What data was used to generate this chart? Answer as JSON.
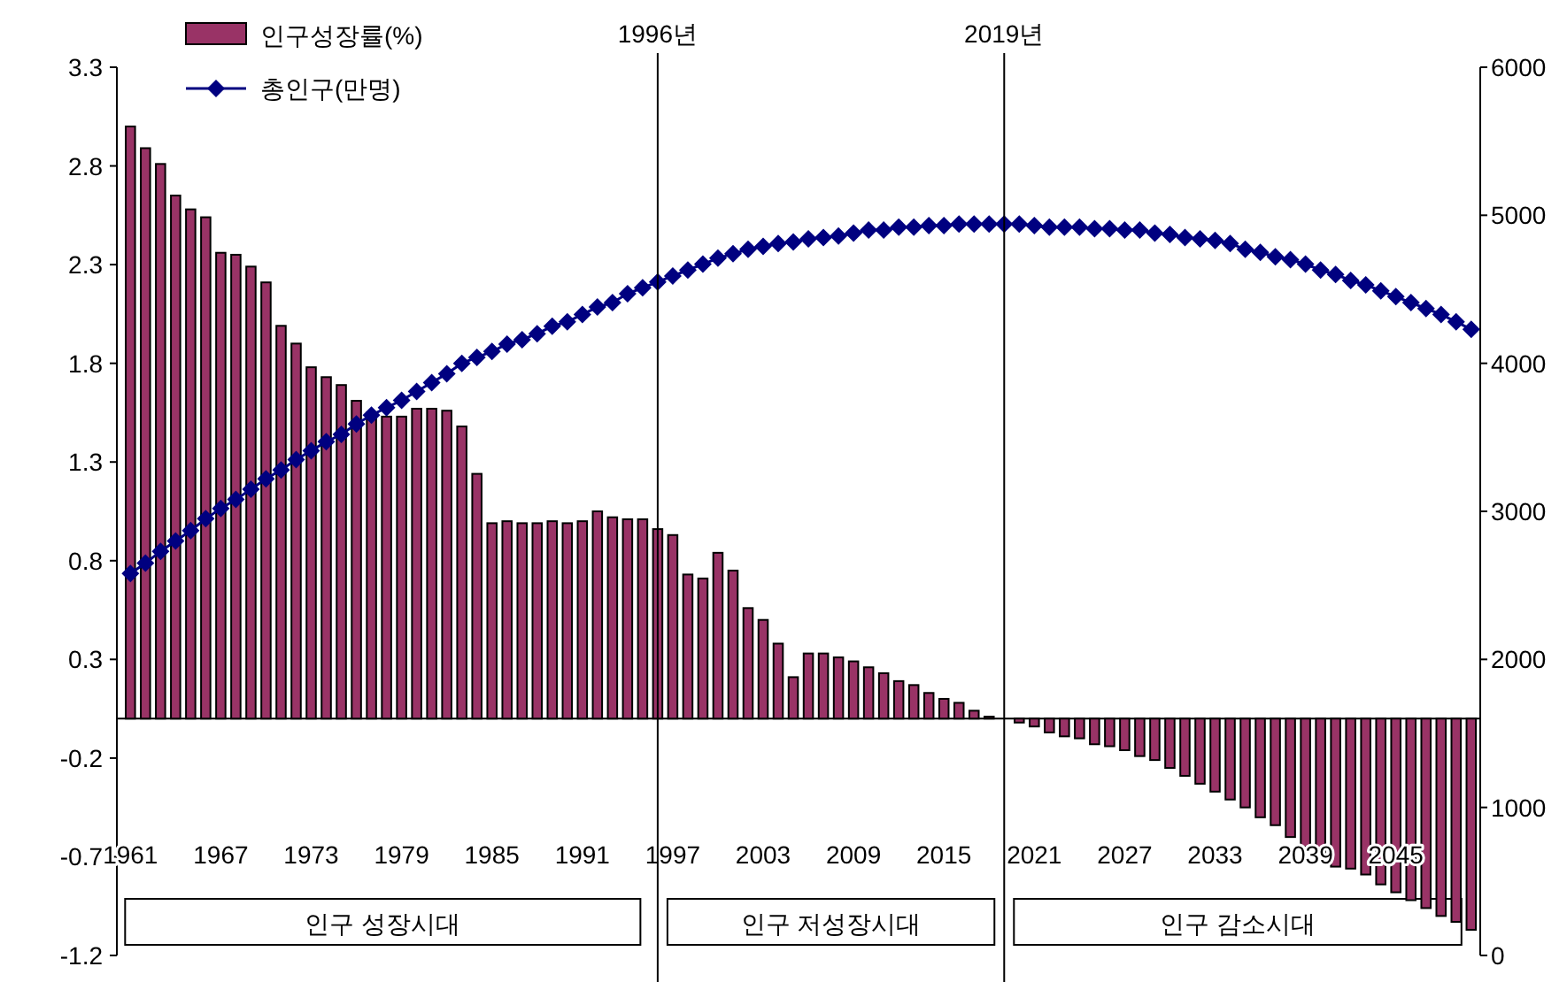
{
  "chart_data": {
    "type": "bar",
    "x": [
      1961,
      1962,
      1963,
      1964,
      1965,
      1966,
      1967,
      1968,
      1969,
      1970,
      1971,
      1972,
      1973,
      1974,
      1975,
      1976,
      1977,
      1978,
      1979,
      1980,
      1981,
      1982,
      1983,
      1984,
      1985,
      1986,
      1987,
      1988,
      1989,
      1990,
      1991,
      1992,
      1993,
      1994,
      1995,
      1996,
      1997,
      1998,
      1999,
      2000,
      2001,
      2002,
      2003,
      2004,
      2005,
      2006,
      2007,
      2008,
      2009,
      2010,
      2011,
      2012,
      2013,
      2014,
      2015,
      2016,
      2017,
      2018,
      2019,
      2020,
      2021,
      2022,
      2023,
      2024,
      2025,
      2026,
      2027,
      2028,
      2029,
      2030,
      2031,
      2032,
      2033,
      2034,
      2035,
      2036,
      2037,
      2038,
      2039,
      2040,
      2041,
      2042,
      2043,
      2044,
      2045,
      2046,
      2047,
      2048,
      2049,
      2050
    ],
    "series": [
      {
        "name": "인구성장률(%)",
        "color": "#993366",
        "values": [
          3.0,
          2.89,
          2.81,
          2.65,
          2.58,
          2.54,
          2.36,
          2.35,
          2.29,
          2.21,
          1.99,
          1.9,
          1.78,
          1.73,
          1.69,
          1.61,
          1.55,
          1.53,
          1.53,
          1.57,
          1.57,
          1.56,
          1.48,
          1.24,
          0.99,
          1.0,
          0.99,
          0.99,
          1.0,
          0.99,
          1.0,
          1.05,
          1.02,
          1.01,
          1.01,
          0.96,
          0.93,
          0.73,
          0.71,
          0.84,
          0.75,
          0.56,
          0.5,
          0.38,
          0.21,
          0.33,
          0.33,
          0.31,
          0.29,
          0.26,
          0.23,
          0.19,
          0.17,
          0.13,
          0.1,
          0.08,
          0.04,
          0.01,
          0.0,
          -0.02,
          -0.04,
          -0.07,
          -0.09,
          -0.1,
          -0.13,
          -0.14,
          -0.16,
          -0.19,
          -0.21,
          -0.25,
          -0.29,
          -0.33,
          -0.37,
          -0.41,
          -0.45,
          -0.5,
          -0.54,
          -0.6,
          -0.65,
          -0.72,
          -0.75,
          -0.76,
          -0.79,
          -0.84,
          -0.88,
          -0.92,
          -0.96,
          -1.0,
          -1.03,
          -1.07
        ]
      },
      {
        "name": "총인구(만명)",
        "type": "line",
        "axis": "y2",
        "color": "#000080",
        "marker": "diamond",
        "values": [
          2580,
          2650,
          2730,
          2800,
          2870,
          2950,
          3020,
          3080,
          3150,
          3220,
          3280,
          3350,
          3410,
          3470,
          3520,
          3590,
          3650,
          3700,
          3750,
          3810,
          3870,
          3930,
          4000,
          4040,
          4080,
          4130,
          4160,
          4200,
          4250,
          4280,
          4330,
          4380,
          4410,
          4470,
          4510,
          4550,
          4590,
          4630,
          4670,
          4710,
          4740,
          4770,
          4790,
          4810,
          4820,
          4840,
          4850,
          4860,
          4880,
          4900,
          4900,
          4920,
          4920,
          4930,
          4930,
          4940,
          4940,
          4940,
          4940,
          4940,
          4930,
          4920,
          4920,
          4920,
          4910,
          4910,
          4900,
          4900,
          4880,
          4870,
          4850,
          4840,
          4830,
          4810,
          4770,
          4750,
          4720,
          4700,
          4670,
          4630,
          4600,
          4560,
          4530,
          4490,
          4450,
          4410,
          4370,
          4330,
          4280,
          4230
        ]
      }
    ],
    "xlim": [
      1960.1,
      2050.6
    ],
    "xticks": [
      1961,
      1967,
      1973,
      1979,
      1985,
      1991,
      1997,
      2003,
      2009,
      2015,
      2021,
      2027,
      2033,
      2039,
      2045
    ],
    "ylim": [
      -1.2,
      3.3
    ],
    "yticks": [
      -1.2,
      -0.7,
      -0.2,
      0.3,
      0.8,
      1.3,
      1.8,
      2.3,
      2.8,
      3.3
    ],
    "y2lim": [
      0,
      6000
    ],
    "y2ticks": [
      0,
      1000,
      2000,
      3000,
      4000,
      5000,
      6000
    ],
    "ref_lines": [
      {
        "axis": "x",
        "value": 1996,
        "label": "1996년",
        "color": "#000000"
      },
      {
        "axis": "x",
        "value": 2019,
        "label": "2019년",
        "color": "#000000"
      }
    ],
    "bands": [
      {
        "axis": "x",
        "from": 1961,
        "to": 1994.5,
        "label": "인구 성장시대",
        "color": "#ffffff"
      },
      {
        "axis": "x",
        "from": 1997,
        "to": 2018,
        "label": "인구 저성장시대",
        "color": "#ffffff"
      },
      {
        "axis": "x",
        "from": 2020,
        "to": 2049,
        "label": "인구 감소시대",
        "color": "#ffffff"
      }
    ],
    "legend": "top left"
  }
}
